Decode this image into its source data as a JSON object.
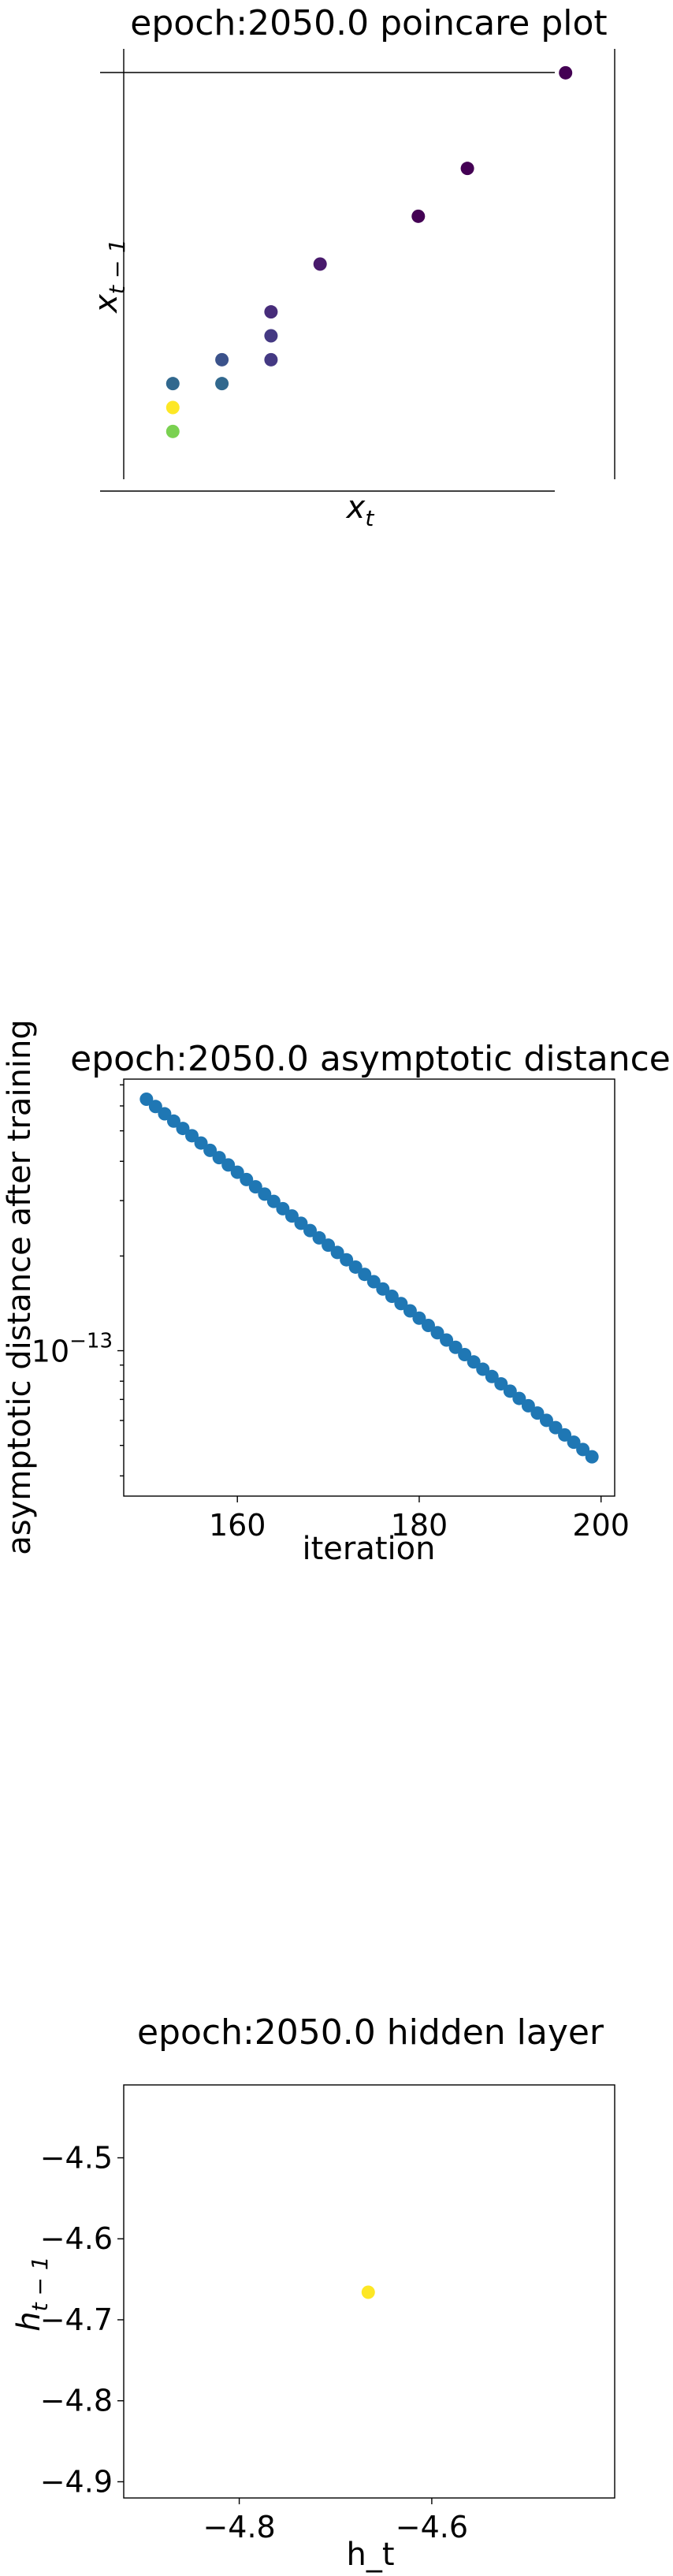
{
  "chart_data": [
    {
      "type": "scatter",
      "title": "epoch:2050.0 poincare plot",
      "xlabel_base": "x",
      "xlabel_sub": "t",
      "ylabel_base": "x",
      "ylabel_sub": "t − 1",
      "points": [
        {
          "x": 1,
          "y": 4,
          "color": "#31688e"
        },
        {
          "x": 1,
          "y": 3,
          "color": "#fde725"
        },
        {
          "x": 1,
          "y": 2,
          "color": "#7ad151"
        },
        {
          "x": 2,
          "y": 4,
          "color": "#31688e"
        },
        {
          "x": 2,
          "y": 5,
          "color": "#3b528b"
        },
        {
          "x": 3,
          "y": 5,
          "color": "#443983"
        },
        {
          "x": 3,
          "y": 6,
          "color": "#443983"
        },
        {
          "x": 3,
          "y": 7,
          "color": "#472c7a"
        },
        {
          "x": 4,
          "y": 9,
          "color": "#481a6c"
        },
        {
          "x": 6,
          "y": 11,
          "color": "#440154"
        },
        {
          "x": 7,
          "y": 13,
          "color": "#440154"
        },
        {
          "x": 9,
          "y": 17,
          "color": "#440154"
        }
      ],
      "xlim": [
        0,
        10
      ],
      "ylim": [
        0,
        18
      ]
    },
    {
      "type": "scatter",
      "title": "epoch:2050.0 asymptotic distance",
      "xlabel": "iteration",
      "ylabel": "asymptotic distance after training",
      "yscale": "log",
      "color": "#1f77b4",
      "x_start": 150,
      "x_end": 199,
      "y_start": 6.3e-13,
      "y_end": 4.6e-14,
      "xlim": [
        147.5,
        201.5
      ],
      "ylim": [
        3.45e-14,
        7.3e-13
      ],
      "xticks": [
        {
          "value": 160,
          "label": "160"
        },
        {
          "value": 180,
          "label": "180"
        },
        {
          "value": 200,
          "label": "200"
        }
      ],
      "yticks": [
        {
          "value": 1e-13,
          "base": "10",
          "exp": "−13"
        }
      ]
    },
    {
      "type": "scatter",
      "title": "epoch:2050.0 hidden layer",
      "xlabel": "h_t",
      "ylabel_base": "h",
      "ylabel_sub": "t − 1",
      "color": "#fde725",
      "points": [
        {
          "x": -4.666,
          "y": -4.666
        }
      ],
      "xlim": [
        -4.92,
        -4.41
      ],
      "ylim": [
        -4.92,
        -4.41
      ],
      "xticks": [
        {
          "value": -4.8,
          "label": "−4.8"
        },
        {
          "value": -4.6,
          "label": "−4.6"
        }
      ],
      "yticks": [
        {
          "value": -4.5,
          "label": "−4.5"
        },
        {
          "value": -4.6,
          "label": "−4.6"
        },
        {
          "value": -4.7,
          "label": "−4.7"
        },
        {
          "value": -4.8,
          "label": "−4.8"
        },
        {
          "value": -4.9,
          "label": "−4.9"
        }
      ]
    }
  ]
}
